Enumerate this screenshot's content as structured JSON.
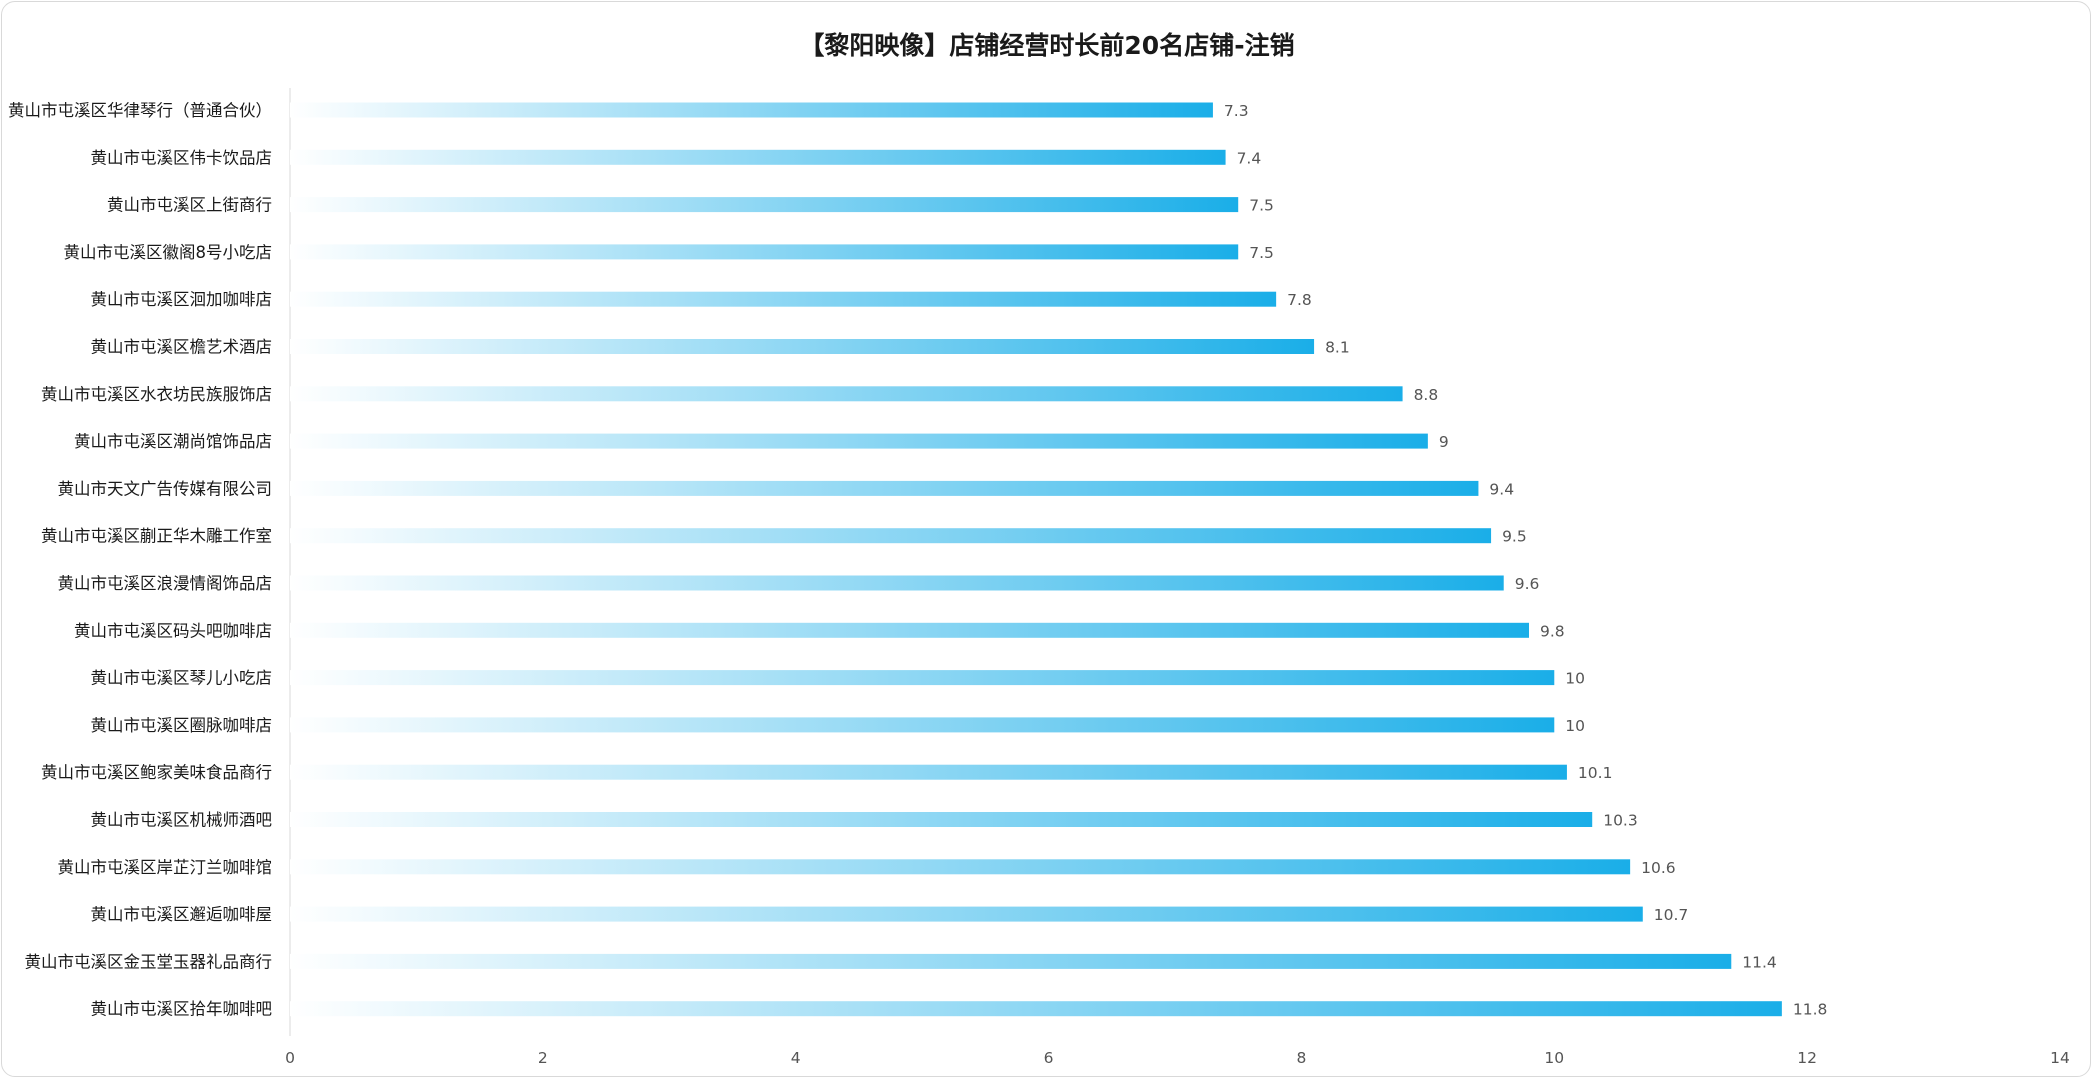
{
  "title": "【黎阳映像】店铺经营时长前20名店铺-注销",
  "colors": {
    "bar_start": "#ffffff",
    "bar_end": "#1aaee8",
    "axis": "#d9d9d9",
    "text": "#1a1a1a",
    "value_text": "#555555"
  },
  "chart_data": {
    "type": "bar",
    "orientation": "horizontal",
    "title": "【黎阳映像】店铺经营时长前20名店铺-注销",
    "categories": [
      "黄山市屯溪区华律琴行（普通合伙）",
      "黄山市屯溪区伟卡饮品店",
      "黄山市屯溪区上街商行",
      "黄山市屯溪区徽阁8号小吃店",
      "黄山市屯溪区洄加咖啡店",
      "黄山市屯溪区檐艺术酒店",
      "黄山市屯溪区水衣坊民族服饰店",
      "黄山市屯溪区潮尚馆饰品店",
      "黄山市天文广告传媒有限公司",
      "黄山市屯溪区蒯正华木雕工作室",
      "黄山市屯溪区浪漫情阁饰品店",
      "黄山市屯溪区码头吧咖啡店",
      "黄山市屯溪区琴儿小吃店",
      "黄山市屯溪区圈脉咖啡店",
      "黄山市屯溪区鲍家美味食品商行",
      "黄山市屯溪区机械师酒吧",
      "黄山市屯溪区岸芷汀兰咖啡馆",
      "黄山市屯溪区邂逅咖啡屋",
      "黄山市屯溪区金玉堂玉器礼品商行",
      "黄山市屯溪区拾年咖啡吧"
    ],
    "values": [
      7.3,
      7.4,
      7.5,
      7.5,
      7.8,
      8.1,
      8.8,
      9,
      9.4,
      9.5,
      9.6,
      9.8,
      10,
      10,
      10.1,
      10.3,
      10.6,
      10.7,
      11.4,
      11.8
    ],
    "value_labels": [
      "7.3",
      "7.4",
      "7.5",
      "7.5",
      "7.8",
      "8.1",
      "8.8",
      "9",
      "9.4",
      "9.5",
      "9.6",
      "9.8",
      "10",
      "10",
      "10.1",
      "10.3",
      "10.6",
      "10.7",
      "11.4",
      "11.8"
    ],
    "xlim": [
      0,
      14
    ],
    "x_ticks": [
      "0",
      "2",
      "4",
      "6",
      "8",
      "10",
      "12",
      "14"
    ],
    "grid": false,
    "legend": "none",
    "xlabel": "",
    "ylabel": ""
  }
}
